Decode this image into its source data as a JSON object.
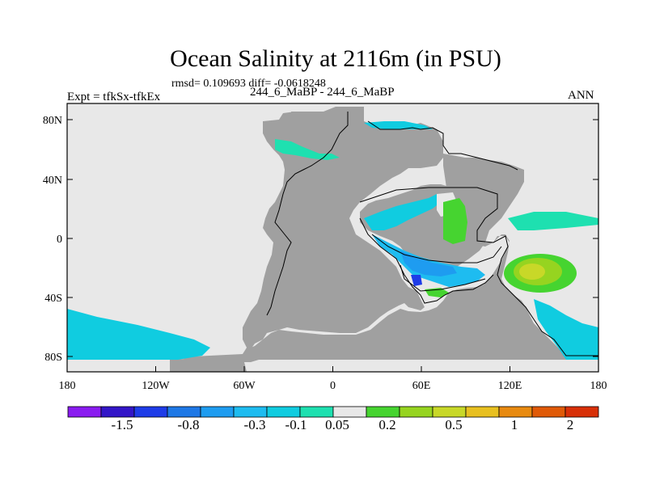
{
  "figure": {
    "title": "Ocean Salinity at 2116m (in PSU)",
    "stats_text": "rmsd= 0.109693 diff= -0.0618248",
    "left_label": "Expt = tfkSx-tfkEx",
    "center_label": "244_6_MaBP - 244_6_MaBP",
    "right_label": "ANN"
  },
  "axes": {
    "y_ticks": [
      "80N",
      "40N",
      "0",
      "40S",
      "80S"
    ],
    "x_ticks": [
      "180",
      "120W",
      "60W",
      "0",
      "60E",
      "120E",
      "180"
    ]
  },
  "map": {
    "land_color": "#a0a0a0",
    "near_zero_color": "#e8e8e8",
    "coast_color": "#000000"
  },
  "colorbar": {
    "colors": [
      "#8a1cf0",
      "#3316c8",
      "#1e3ce8",
      "#1e78e6",
      "#1e9cf0",
      "#1ebcf0",
      "#10cce0",
      "#1ee0b0",
      "#e8e8e8",
      "#46d430",
      "#96d420",
      "#c8d828",
      "#e8c020",
      "#e88a10",
      "#e05a08",
      "#d83008"
    ],
    "labels": [
      "-1.5",
      "-0.8",
      "-0.3",
      "-0.1",
      "0.05",
      "0.2",
      "0.5",
      "1",
      "2"
    ]
  }
}
